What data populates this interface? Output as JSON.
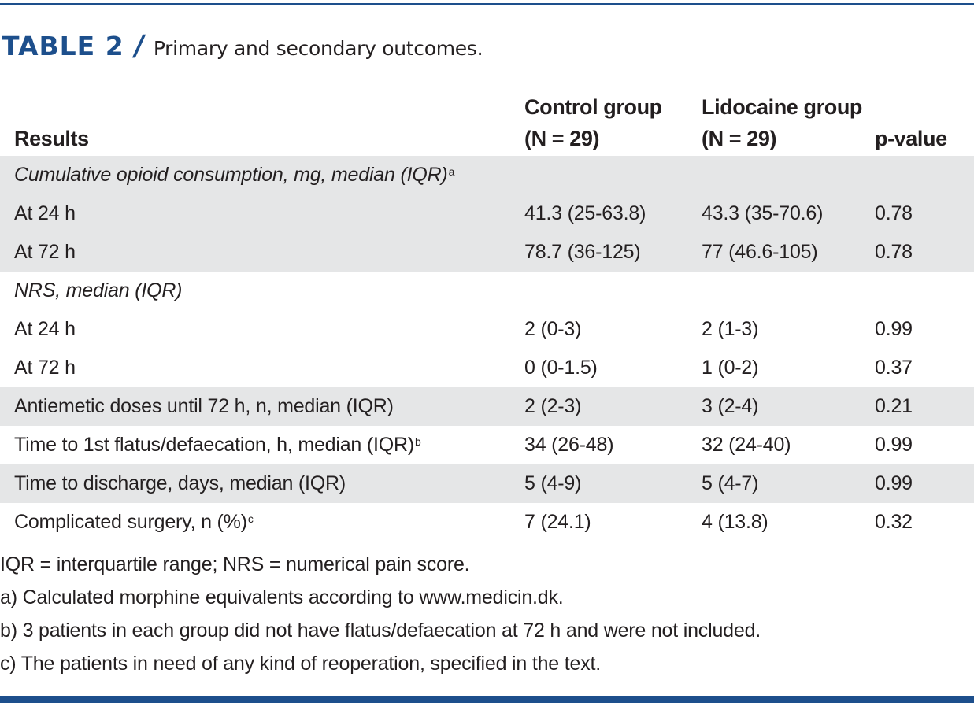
{
  "caption": {
    "label": "TABLE 2",
    "slash": "/",
    "title": "Primary and secondary outcomes."
  },
  "colors": {
    "accent": "#1d4f8c",
    "shade": "#e5e6e7",
    "text": "#231f20"
  },
  "table": {
    "headers": {
      "results": "Results",
      "control_line1": "Control group",
      "control_line2": "(N = 29)",
      "lidocaine_line1": "Lidocaine group",
      "lidocaine_line2": "(N = 29)",
      "pvalue": "p-value"
    },
    "rows": [
      {
        "label": "Cumulative opioid consumption, mg, median (IQR)",
        "sup": "a",
        "control": "",
        "lidocaine": "",
        "p": ""
      },
      {
        "label": "At 24 h",
        "sup": "",
        "control": "41.3 (25-63.8)",
        "lidocaine": "43.3 (35-70.6)",
        "p": "0.78"
      },
      {
        "label": "At 72 h",
        "sup": "",
        "control": "78.7 (36-125)",
        "lidocaine": "77 (46.6-105)",
        "p": "0.78"
      },
      {
        "label": "NRS, median (IQR)",
        "sup": "",
        "control": "",
        "lidocaine": "",
        "p": ""
      },
      {
        "label": "At 24 h",
        "sup": "",
        "control": "2 (0-3)",
        "lidocaine": "2 (1-3)",
        "p": "0.99"
      },
      {
        "label": "At 72 h",
        "sup": "",
        "control": "0 (0-1.5)",
        "lidocaine": "1 (0-2)",
        "p": "0.37"
      },
      {
        "label": "Antiemetic doses until 72 h, n, median (IQR)",
        "sup": "",
        "control": "2 (2-3)",
        "lidocaine": "3 (2-4)",
        "p": "0.21"
      },
      {
        "label": "Time to 1st flatus/defaecation, h, median (IQR)",
        "sup": "b",
        "control": "34 (26-48)",
        "lidocaine": "32 (24-40)",
        "p": "0.99"
      },
      {
        "label": "Time to discharge, days, median (IQR)",
        "sup": "",
        "control": "5 (4-9)",
        "lidocaine": "5 (4-7)",
        "p": "0.99"
      },
      {
        "label": "Complicated surgery, n (%)",
        "sup": "c",
        "control": "7 (24.1)",
        "lidocaine": "4 (13.8)",
        "p": "0.32"
      }
    ]
  },
  "footnotes": [
    "IQR = interquartile range; NRS = numerical pain score.",
    "a) Calculated morphine equivalents according to www.medicin.dk.",
    "b) 3 patients in each group did not have flatus/defaecation at 72 h and were not included.",
    "c) The patients in need of any kind of reoperation, specified in the text."
  ]
}
